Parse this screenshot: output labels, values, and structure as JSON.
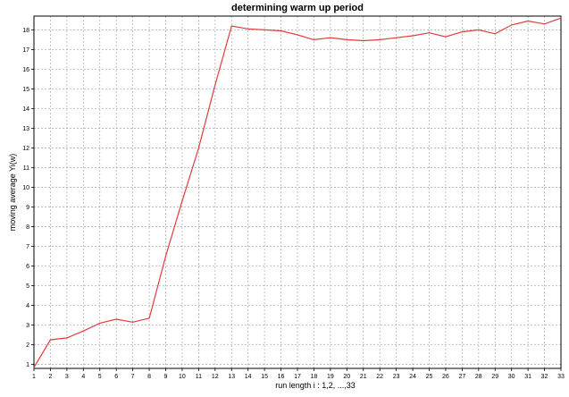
{
  "chart_data": {
    "type": "line",
    "title": "determining warm up period",
    "xlabel": "run length  i : 1,2, ...,33",
    "ylabel": "moving average Yi(w)",
    "x": [
      1,
      2,
      3,
      4,
      5,
      6,
      7,
      8,
      9,
      10,
      11,
      12,
      13,
      14,
      15,
      16,
      17,
      18,
      19,
      20,
      21,
      22,
      23,
      24,
      25,
      26,
      27,
      28,
      29,
      30,
      31,
      32,
      33
    ],
    "xticks": [
      1,
      2,
      3,
      4,
      5,
      6,
      7,
      8,
      9,
      10,
      11,
      12,
      13,
      14,
      15,
      16,
      17,
      18,
      19,
      20,
      21,
      22,
      23,
      24,
      25,
      26,
      27,
      28,
      29,
      30,
      31,
      32,
      33
    ],
    "yticks": [
      1,
      2,
      3,
      4,
      5,
      6,
      7,
      8,
      9,
      10,
      11,
      12,
      13,
      14,
      15,
      16,
      17,
      18
    ],
    "xlim": [
      1,
      33
    ],
    "ylim": [
      0.8,
      18.7
    ],
    "grid": true,
    "series": [
      {
        "color": "#e23b3b",
        "values": [
          0.85,
          2.25,
          2.35,
          2.7,
          3.1,
          3.3,
          3.15,
          3.35,
          6.5,
          9.3,
          12.0,
          15.2,
          18.2,
          18.05,
          18.0,
          17.95,
          17.75,
          17.5,
          17.6,
          17.5,
          17.45,
          17.5,
          17.6,
          17.7,
          17.85,
          17.65,
          17.9,
          18.0,
          17.8,
          18.25,
          18.45,
          18.3,
          18.6
        ]
      }
    ]
  }
}
